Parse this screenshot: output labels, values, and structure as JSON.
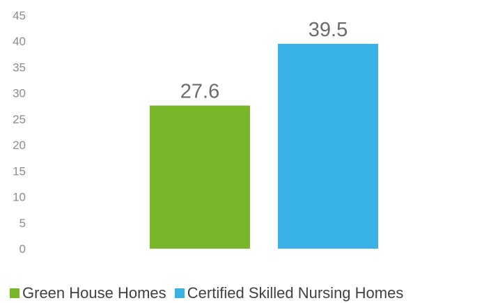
{
  "chart_data": {
    "type": "bar",
    "categories": [
      "Green House Homes",
      "Certified Skilled Nursing Homes"
    ],
    "values": [
      27.6,
      39.5
    ],
    "data_labels": [
      "27.6",
      "39.5"
    ],
    "colors": [
      "#77b729",
      "#38b2e6"
    ],
    "title": "",
    "xlabel": "",
    "ylabel": "",
    "ylim": [
      0,
      45
    ],
    "yticks": [
      0,
      5,
      10,
      15,
      20,
      25,
      30,
      35,
      40,
      45
    ],
    "grid": false,
    "legend": {
      "position": "bottom",
      "entries": [
        "Green House Homes",
        "Certified Skilled Nursing Homes"
      ]
    }
  }
}
